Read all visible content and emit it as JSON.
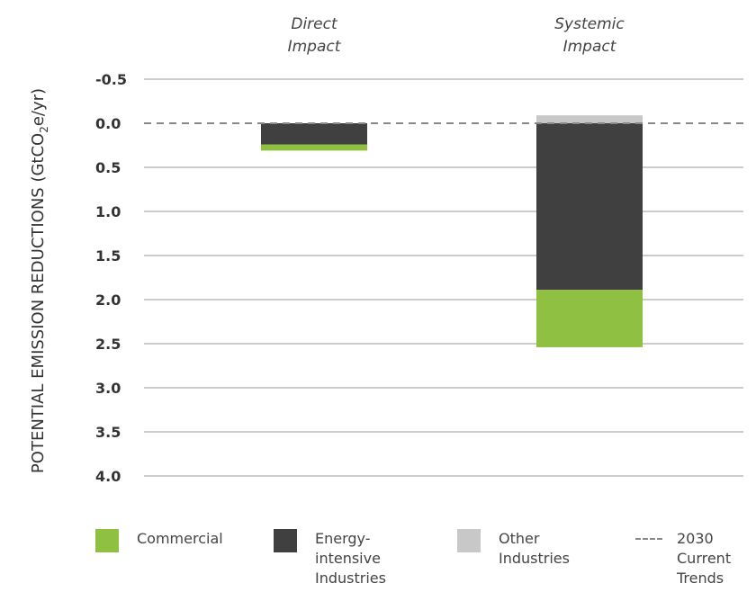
{
  "chart_data": {
    "type": "bar",
    "stacked": true,
    "ylabel_main": "POTENTIAL EMISSION REDUCTIONS (GtCO",
    "ylabel_sub": "2",
    "ylabel_end": "e/yr)",
    "y_axis_inverted": true,
    "yticks": [
      "-0.5",
      "0.0",
      "0.5",
      "1.0",
      "1.5",
      "2.0",
      "2.5",
      "3.0",
      "3.5",
      "4.0"
    ],
    "ylim": [
      -0.5,
      4.0
    ],
    "grid": true,
    "baseline_line": {
      "value": 0.0,
      "style": "dashed",
      "label": "2030 Current Trends"
    },
    "categories": [
      "Direct\nImpact",
      "Systemic\nImpact"
    ],
    "series": [
      {
        "name": "Energy-intensive Industries",
        "color": "#404040",
        "values": [
          0.24,
          1.89
        ]
      },
      {
        "name": "Commercial",
        "color": "#8fc041",
        "values": [
          0.07,
          0.65
        ]
      },
      {
        "name": "Other Industries",
        "color": "#c8c8c8",
        "values": [
          0.0,
          -0.09
        ]
      }
    ],
    "legend": {
      "placement": "bottom",
      "items": [
        {
          "label": "Commercial",
          "color": "#8fc041",
          "kind": "swatch"
        },
        {
          "label": "Energy-\nintensive\nIndustries",
          "color": "#404040",
          "kind": "swatch"
        },
        {
          "label": "Other\nIndustries",
          "color": "#c8c8c8",
          "kind": "swatch"
        },
        {
          "label": "2030\nCurrent\nTrends",
          "color": "#888888",
          "kind": "dash"
        }
      ]
    }
  }
}
